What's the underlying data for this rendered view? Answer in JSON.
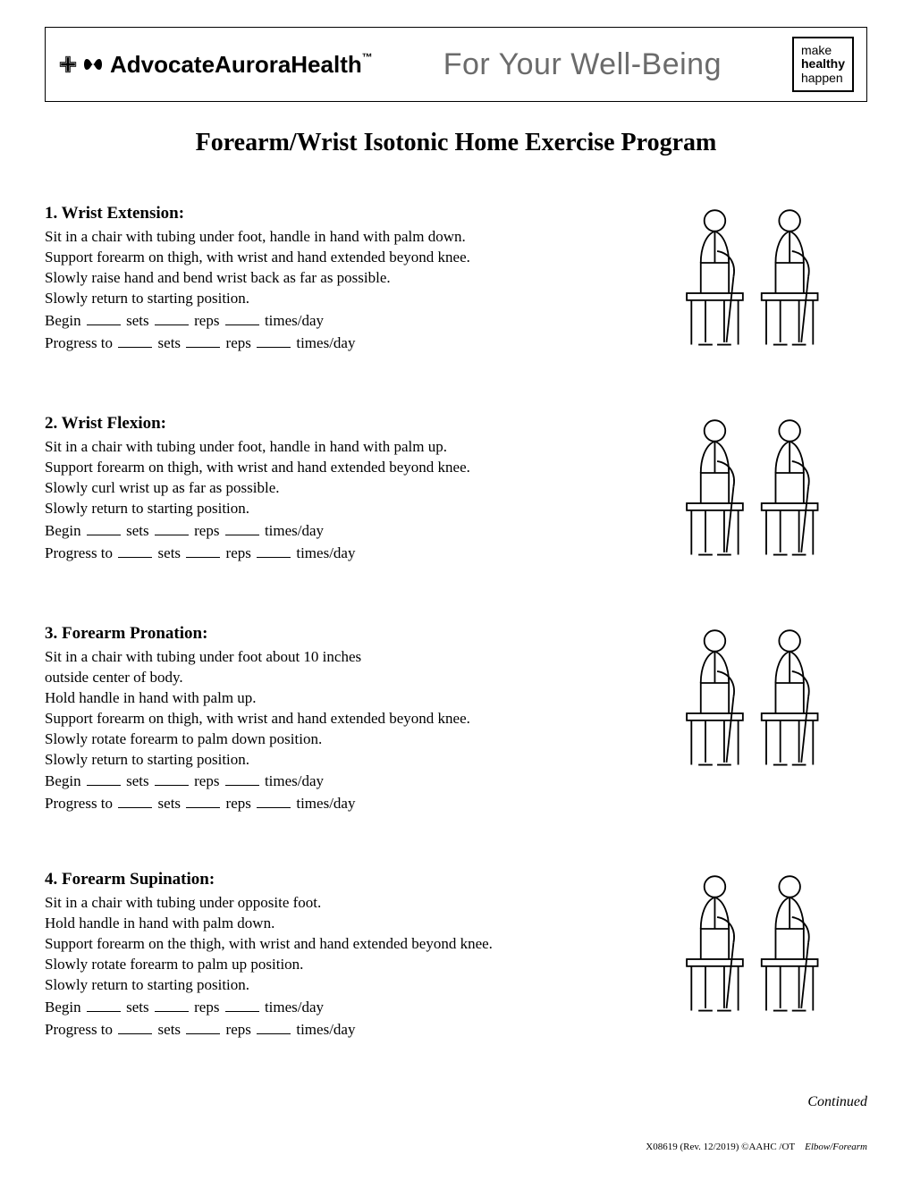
{
  "header": {
    "brand_text": "AdvocateAuroraHealth",
    "brand_tm": "™",
    "tagline": "For Your Well-Being",
    "slogan_line1": "make",
    "slogan_line2": "healthy",
    "slogan_line3": "happen"
  },
  "title": "Forearm/Wrist Isotonic Home Exercise Program",
  "exercises": [
    {
      "heading": "1. Wrist Extension:",
      "lines": [
        "Sit in a chair with tubing under foot, handle in hand with palm down.",
        "Support forearm on thigh, with wrist and hand extended beyond knee.",
        "Slowly raise hand and bend wrist back as far as possible.",
        "Slowly return to starting position."
      ]
    },
    {
      "heading": "2. Wrist Flexion:",
      "lines": [
        "Sit in a chair with tubing under foot, handle in hand with palm up.",
        "Support forearm on thigh, with wrist and hand extended beyond knee.",
        "Slowly curl wrist up as far as possible.",
        "Slowly return to starting position."
      ]
    },
    {
      "heading": "3. Forearm Pronation:",
      "lines": [
        "Sit in a chair with tubing under foot about 10 inches",
        "outside center of body.",
        "Hold handle in hand with palm up.",
        "Support forearm on thigh, with wrist and hand extended beyond knee.",
        "Slowly rotate forearm to palm down position.",
        "Slowly return to starting position."
      ]
    },
    {
      "heading": "4. Forearm Supination:",
      "lines": [
        "Sit in a chair with tubing under opposite foot.",
        "Hold handle in hand with palm down.",
        "Support forearm on the thigh, with wrist and hand extended beyond knee.",
        "Slowly rotate forearm to palm up position.",
        "Slowly return to starting position."
      ]
    }
  ],
  "fill_labels": {
    "begin": "Begin",
    "progress": "Progress to",
    "sets": "sets",
    "reps": "reps",
    "times": "times/day"
  },
  "continued": "Continued",
  "footer": {
    "code": "X08619 (Rev. 12/2019) ©AAHC  /OT",
    "topic": "Elbow/Forearm"
  }
}
